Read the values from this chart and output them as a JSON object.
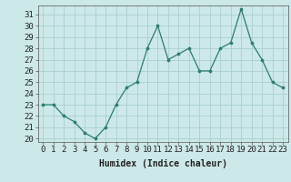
{
  "x": [
    0,
    1,
    2,
    3,
    4,
    5,
    6,
    7,
    8,
    9,
    10,
    11,
    12,
    13,
    14,
    15,
    16,
    17,
    18,
    19,
    20,
    21,
    22,
    23
  ],
  "y": [
    23,
    23,
    22,
    21.5,
    20.5,
    20,
    21,
    23,
    24.5,
    25,
    28,
    30,
    27,
    27.5,
    28,
    26,
    26,
    28,
    28.5,
    31.5,
    28.5,
    27,
    25,
    24.5
  ],
  "line_color": "#2d7d6e",
  "marker_color": "#2d7d6e",
  "bg_color": "#cce8e8",
  "grid_color": "#aacfcf",
  "xlabel": "Humidex (Indice chaleur)",
  "ylim": [
    19.7,
    31.8
  ],
  "xlim": [
    -0.5,
    23.5
  ],
  "yticks": [
    20,
    21,
    22,
    23,
    24,
    25,
    26,
    27,
    28,
    29,
    30,
    31
  ],
  "xtick_labels": [
    "0",
    "1",
    "2",
    "3",
    "4",
    "5",
    "6",
    "7",
    "8",
    "9",
    "10",
    "11",
    "12",
    "13",
    "14",
    "15",
    "16",
    "17",
    "18",
    "19",
    "20",
    "21",
    "22",
    "23"
  ],
  "label_fontsize": 7,
  "tick_fontsize": 6.5
}
